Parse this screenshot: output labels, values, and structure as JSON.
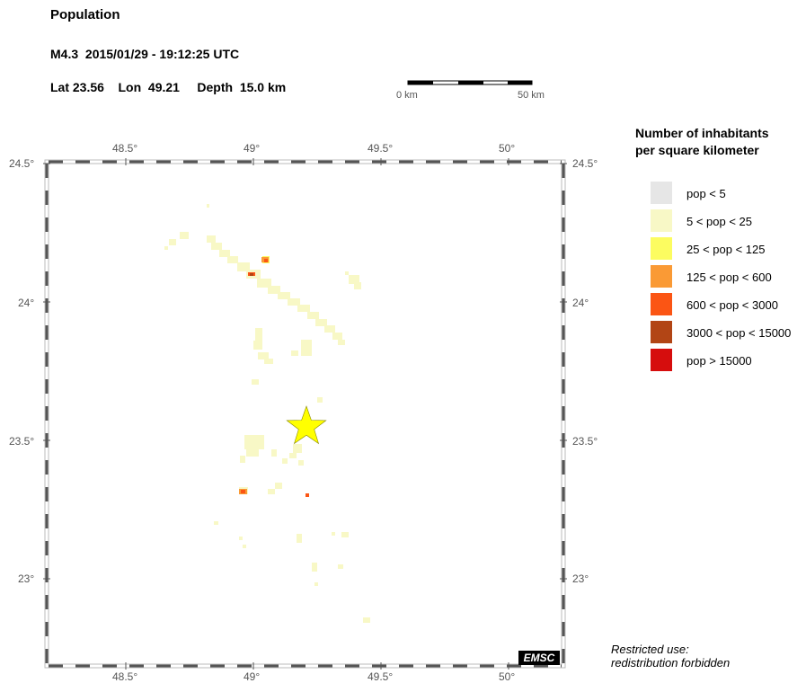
{
  "header": {
    "title": "Population",
    "event_line": "M4.3  2015/01/29 - 19:12:25 UTC",
    "location_line": "Lat 23.56    Lon  49.21     Depth  15.0 km"
  },
  "scale_bar": {
    "start_label": "0 km",
    "end_label": "50 km"
  },
  "map": {
    "lon_ticks": [
      "48.5°",
      "49°",
      "49.5°",
      "50°"
    ],
    "lat_ticks": [
      "24.5°",
      "24°",
      "23.5°",
      "23°"
    ],
    "epicenter": {
      "lat": 23.56,
      "lon": 49.21
    },
    "epicenter_color": "#ffff00"
  },
  "legend": {
    "title_line1": "Number of inhabitants",
    "title_line2": "per square kilometer",
    "items": [
      {
        "label": "pop < 5",
        "color": "#e6e6e6"
      },
      {
        "label": "5 < pop < 25",
        "color": "#f8f8c6"
      },
      {
        "label": "25 < pop < 125",
        "color": "#fcfc60"
      },
      {
        "label": "125 < pop < 600",
        "color": "#fa9a35"
      },
      {
        "label": "600 < pop < 3000",
        "color": "#fb5514"
      },
      {
        "label": "3000 < pop < 15000",
        "color": "#b24515"
      },
      {
        "label": "pop > 15000",
        "color": "#d60d0d"
      }
    ]
  },
  "footer": {
    "emsc_logo": "EMSC",
    "restricted_line1": "Restricted use:",
    "restricted_line2": "redistribution forbidden"
  }
}
